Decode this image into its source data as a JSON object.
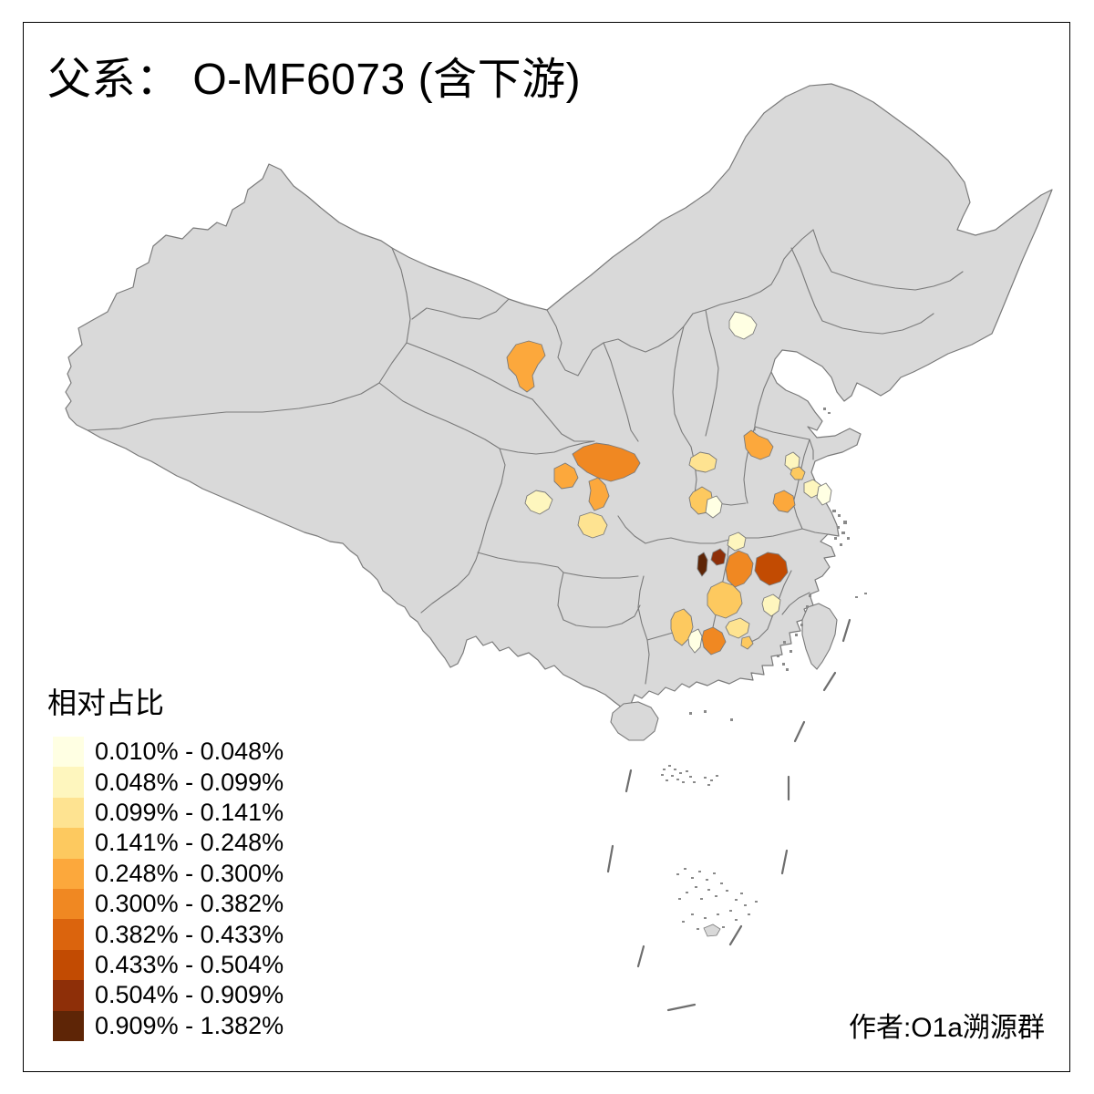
{
  "title": "父系： O-MF6073 (含下游)",
  "attribution": "作者:O1a溯源群",
  "legend": {
    "title": "相对占比",
    "classes": [
      {
        "range": "0.010% - 0.048%",
        "color": "#FFFFE3"
      },
      {
        "range": "0.048% - 0.099%",
        "color": "#FEF6BE"
      },
      {
        "range": "0.099% - 0.141%",
        "color": "#FEE391"
      },
      {
        "range": "0.141% - 0.248%",
        "color": "#FDC95F"
      },
      {
        "range": "0.248% - 0.300%",
        "color": "#FCA83C"
      },
      {
        "range": "0.300% - 0.382%",
        "color": "#F08822"
      },
      {
        "range": "0.382% - 0.433%",
        "color": "#DB640D"
      },
      {
        "range": "0.433% - 0.504%",
        "color": "#C24B02"
      },
      {
        "range": "0.504% - 0.909%",
        "color": "#8E2F08"
      },
      {
        "range": "0.909% - 1.382%",
        "color": "#5E2506"
      }
    ]
  },
  "map": {
    "land_color": "#D9D9D9",
    "border_color": "#7A7A7A",
    "sea_color": "#FFFFFF",
    "dash_color": "#6E6E6E",
    "regions": [
      {
        "id": "r1",
        "class": 5
      },
      {
        "id": "r2",
        "class": 1
      },
      {
        "id": "r3",
        "class": 6
      },
      {
        "id": "r4",
        "class": 5
      },
      {
        "id": "r5",
        "class": 5
      },
      {
        "id": "r6",
        "class": 2
      },
      {
        "id": "r7",
        "class": 3
      },
      {
        "id": "r8",
        "class": 5
      },
      {
        "id": "r9",
        "class": 3
      },
      {
        "id": "r10",
        "class": 2
      },
      {
        "id": "r11",
        "class": 4
      },
      {
        "id": "r12",
        "class": 4
      },
      {
        "id": "r13",
        "class": 1
      },
      {
        "id": "r14",
        "class": 2
      },
      {
        "id": "r15",
        "class": 1
      },
      {
        "id": "r16",
        "class": 5
      },
      {
        "id": "r17",
        "class": 2
      },
      {
        "id": "r18",
        "class": 9
      },
      {
        "id": "r19",
        "class": 10
      },
      {
        "id": "r20",
        "class": 6
      },
      {
        "id": "r21",
        "class": 8
      },
      {
        "id": "r22",
        "class": 4
      },
      {
        "id": "r23",
        "class": 2
      },
      {
        "id": "r24",
        "class": 3
      },
      {
        "id": "r25",
        "class": 4
      },
      {
        "id": "r26",
        "class": 1
      },
      {
        "id": "r27",
        "class": 6
      },
      {
        "id": "r28",
        "class": 4
      }
    ]
  }
}
